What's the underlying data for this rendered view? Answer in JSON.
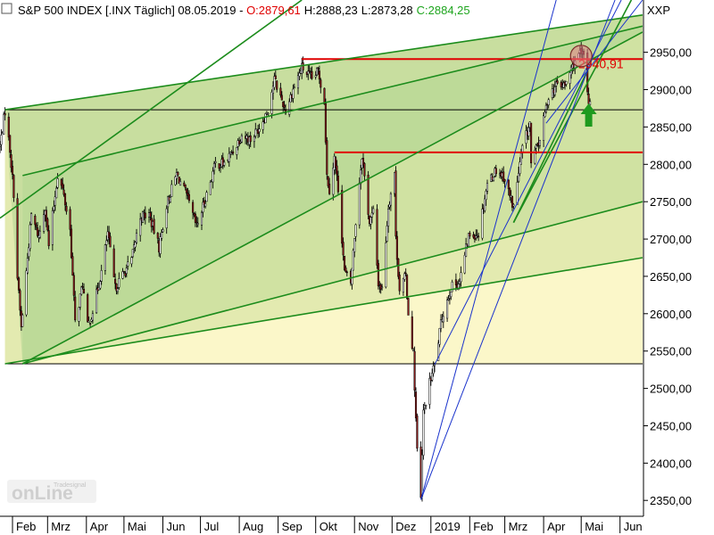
{
  "header": {
    "title_prefix": "S&P 500 INDEX [.INX  Täglich] 08.05.2019 - ",
    "open": "O:2879,61",
    "high": "H:2888,23",
    "low": "L:2873,28",
    "close": "C:2884,25",
    "symbol_tag": "XXP"
  },
  "colors": {
    "open": "#e00000",
    "close": "#1ea51e",
    "candle_body": "#8a1a1a",
    "wick": "#000000",
    "green_line": "#1c8c1c",
    "red_line": "#e00000",
    "blue_line": "#1a33cc",
    "band_outer": "#fbf7c9",
    "band_mid": "#e3eab0",
    "band_inner": "#c9df9d",
    "band_top": "#a7d08c",
    "arrow": "#1e9a1e"
  },
  "watermark": {
    "brand": "onLine",
    "sub": "Tradesignal"
  },
  "chart_data": {
    "type": "candlestick",
    "instrument": "S&P 500 INDEX [.INX]",
    "interval": "Täglich",
    "date": "08.05.2019",
    "ohlc_last": {
      "open": 2879.61,
      "high": 2888.23,
      "low": 2873.28,
      "close": 2884.25
    },
    "ylim": [
      2330,
      3020
    ],
    "yticks": [
      {
        "value": 2350,
        "label": "2350,00"
      },
      {
        "value": 2400,
        "label": "2400,00"
      },
      {
        "value": 2450,
        "label": "2450,00"
      },
      {
        "value": 2500,
        "label": "2500,00"
      },
      {
        "value": 2550,
        "label": "2550,00"
      },
      {
        "value": 2600,
        "label": "2600,00"
      },
      {
        "value": 2650,
        "label": "2650,00"
      },
      {
        "value": 2700,
        "label": "2700,00"
      },
      {
        "value": 2750,
        "label": "2750,00"
      },
      {
        "value": 2800,
        "label": "2800,00"
      },
      {
        "value": 2850,
        "label": "2850,00"
      },
      {
        "value": 2900,
        "label": "2900,00"
      },
      {
        "value": 2950,
        "label": "2950,00"
      }
    ],
    "xlim": [
      "2018-01-22",
      "2019-06-19"
    ],
    "xticks": [
      {
        "date": "2018-02-01",
        "label": "Feb"
      },
      {
        "date": "2018-03-01",
        "label": "Mrz"
      },
      {
        "date": "2018-04-01",
        "label": "Apr"
      },
      {
        "date": "2018-05-01",
        "label": "Mai"
      },
      {
        "date": "2018-06-01",
        "label": "Jun"
      },
      {
        "date": "2018-07-01",
        "label": "Jul"
      },
      {
        "date": "2018-08-01",
        "label": "Aug"
      },
      {
        "date": "2018-09-01",
        "label": "Sep"
      },
      {
        "date": "2018-10-01",
        "label": "Okt"
      },
      {
        "date": "2018-11-01",
        "label": "Nov"
      },
      {
        "date": "2018-12-01",
        "label": "Dez"
      },
      {
        "date": "2019-01-01",
        "label": "2019"
      },
      {
        "date": "2019-02-01",
        "label": "Feb"
      },
      {
        "date": "2019-03-01",
        "label": "Mrz"
      },
      {
        "date": "2019-04-01",
        "label": "Apr"
      },
      {
        "date": "2019-05-01",
        "label": "Mai"
      },
      {
        "date": "2019-06-01",
        "label": "Jun"
      }
    ],
    "series": [
      {
        "kind": "close",
        "points": [
          [
            "2018-01-22",
            2825
          ],
          [
            "2018-01-26",
            2872
          ],
          [
            "2018-01-30",
            2820
          ],
          [
            "2018-02-02",
            2762
          ],
          [
            "2018-02-05",
            2649
          ],
          [
            "2018-02-08",
            2581
          ],
          [
            "2018-02-12",
            2656
          ],
          [
            "2018-02-16",
            2732
          ],
          [
            "2018-02-22",
            2703
          ],
          [
            "2018-02-27",
            2745
          ],
          [
            "2018-03-02",
            2691
          ],
          [
            "2018-03-09",
            2786
          ],
          [
            "2018-03-13",
            2766
          ],
          [
            "2018-03-19",
            2712
          ],
          [
            "2018-03-23",
            2588
          ],
          [
            "2018-03-29",
            2640
          ],
          [
            "2018-04-02",
            2582
          ],
          [
            "2018-04-06",
            2604
          ],
          [
            "2018-04-13",
            2656
          ],
          [
            "2018-04-18",
            2708
          ],
          [
            "2018-04-24",
            2634
          ],
          [
            "2018-05-01",
            2655
          ],
          [
            "2018-05-07",
            2672
          ],
          [
            "2018-05-14",
            2730
          ],
          [
            "2018-05-21",
            2733
          ],
          [
            "2018-05-29",
            2689
          ],
          [
            "2018-06-04",
            2746
          ],
          [
            "2018-06-12",
            2787
          ],
          [
            "2018-06-19",
            2762
          ],
          [
            "2018-06-28",
            2716
          ],
          [
            "2018-07-06",
            2760
          ],
          [
            "2018-07-13",
            2801
          ],
          [
            "2018-07-20",
            2801
          ],
          [
            "2018-07-27",
            2818
          ],
          [
            "2018-08-03",
            2840
          ],
          [
            "2018-08-10",
            2833
          ],
          [
            "2018-08-17",
            2850
          ],
          [
            "2018-08-24",
            2874
          ],
          [
            "2018-08-29",
            2914
          ],
          [
            "2018-09-07",
            2872
          ],
          [
            "2018-09-14",
            2905
          ],
          [
            "2018-09-20",
            2930
          ],
          [
            "2018-09-28",
            2914
          ],
          [
            "2018-10-03",
            2925
          ],
          [
            "2018-10-08",
            2884
          ],
          [
            "2018-10-10",
            2785
          ],
          [
            "2018-10-12",
            2767
          ],
          [
            "2018-10-16",
            2809
          ],
          [
            "2018-10-19",
            2768
          ],
          [
            "2018-10-24",
            2656
          ],
          [
            "2018-10-29",
            2641
          ],
          [
            "2018-11-02",
            2723
          ],
          [
            "2018-11-07",
            2813
          ],
          [
            "2018-11-13",
            2722
          ],
          [
            "2018-11-16",
            2736
          ],
          [
            "2018-11-20",
            2641
          ],
          [
            "2018-11-23",
            2633
          ],
          [
            "2018-11-28",
            2743
          ],
          [
            "2018-12-03",
            2790
          ],
          [
            "2018-12-04",
            2700
          ],
          [
            "2018-12-07",
            2633
          ],
          [
            "2018-12-12",
            2651
          ],
          [
            "2018-12-14",
            2600
          ],
          [
            "2018-12-18",
            2546
          ],
          [
            "2018-12-21",
            2416
          ],
          [
            "2018-12-24",
            2351
          ],
          [
            "2018-12-26",
            2467
          ],
          [
            "2018-12-31",
            2507
          ],
          [
            "2019-01-04",
            2532
          ],
          [
            "2019-01-10",
            2596
          ],
          [
            "2019-01-17",
            2635
          ],
          [
            "2019-01-24",
            2643
          ],
          [
            "2019-01-31",
            2704
          ],
          [
            "2019-02-08",
            2708
          ],
          [
            "2019-02-15",
            2775
          ],
          [
            "2019-02-22",
            2793
          ],
          [
            "2019-02-28",
            2784
          ],
          [
            "2019-03-08",
            2743
          ],
          [
            "2019-03-15",
            2822
          ],
          [
            "2019-03-21",
            2855
          ],
          [
            "2019-03-22",
            2800
          ],
          [
            "2019-03-29",
            2834
          ],
          [
            "2019-04-05",
            2893
          ],
          [
            "2019-04-12",
            2907
          ],
          [
            "2019-04-18",
            2905
          ],
          [
            "2019-04-26",
            2940
          ],
          [
            "2019-04-30",
            2946
          ],
          [
            "2019-05-03",
            2945
          ],
          [
            "2019-05-07",
            2884
          ],
          [
            "2019-05-08",
            2884
          ]
        ]
      }
    ],
    "horizontal_lines": [
      {
        "value": 2940.91,
        "from": "2018-09-20",
        "color": "red",
        "label": "2940,91"
      },
      {
        "value": 2816,
        "from": "2018-10-16",
        "color": "red"
      },
      {
        "value": 2873,
        "from": "2018-01-26",
        "color": "black"
      },
      {
        "value": 2533,
        "from": "2018-01-26",
        "color": "black"
      }
    ],
    "trendlines": [
      {
        "color": "green",
        "from": [
          "2018-01-26",
          2873
        ],
        "to": [
          "2019-06-19",
          3000
        ]
      },
      {
        "color": "green",
        "from": [
          "2018-01-26",
          2533
        ],
        "to": [
          "2019-06-19",
          2675
        ]
      },
      {
        "color": "green",
        "from": [
          "2018-02-09",
          2533
        ],
        "to": [
          "2019-06-19",
          2750
        ]
      },
      {
        "color": "green",
        "from": [
          "2018-02-09",
          2533
        ],
        "to": [
          "2019-06-19",
          2977
        ]
      },
      {
        "color": "green",
        "from": [
          "2018-02-09",
          2785
        ],
        "to": [
          "2019-06-19",
          2985
        ]
      },
      {
        "color": "green",
        "from": [
          "2019-03-08",
          2722
        ],
        "to": [
          "2019-06-10",
          3020
        ]
      },
      {
        "color": "green",
        "from": [
          "2019-03-08",
          2722
        ],
        "to": [
          "2019-05-06",
          2925
        ]
      },
      {
        "color": "green",
        "from": [
          "2018-01-22",
          2728
        ],
        "to": [
          "2018-09-20",
          3020
        ]
      },
      {
        "color": "blue",
        "from": [
          "2018-12-24",
          2351
        ],
        "to": [
          "2019-04-11",
          3020
        ]
      },
      {
        "color": "blue",
        "from": [
          "2018-12-24",
          2351
        ],
        "to": [
          "2019-05-28",
          3020
        ]
      },
      {
        "color": "blue",
        "from": [
          "2019-01-04",
          2532
        ],
        "to": [
          "2019-06-02",
          3020
        ]
      },
      {
        "color": "blue",
        "from": [
          "2019-04-03",
          2855
        ],
        "to": [
          "2019-06-19",
          3020
        ]
      }
    ],
    "annotations": [
      {
        "kind": "circle",
        "at": [
          "2019-05-01",
          2945
        ]
      },
      {
        "kind": "arrow-up",
        "at": [
          "2019-05-07",
          2860
        ]
      }
    ]
  }
}
